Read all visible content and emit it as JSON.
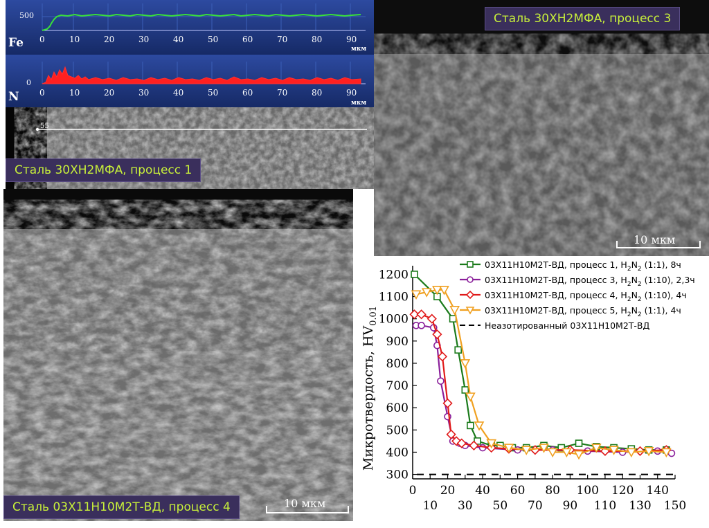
{
  "panels": {
    "p3": {
      "caption": "Сталь 30ХН2МФА, процесс 3",
      "scale": "10 мкм"
    },
    "p1": {
      "caption": "Сталь 30ХН2МФА, процесс 1",
      "marker": "55"
    },
    "p4": {
      "caption": "Сталь 03Х11Н10М2Т-ВД, процесс 4",
      "scale": "10 мкм"
    }
  },
  "profiles": {
    "unit": "мкм",
    "x_ticks": [
      "0",
      "10",
      "20",
      "30",
      "40",
      "50",
      "60",
      "70",
      "80",
      "90"
    ],
    "fe": {
      "label": "Fe",
      "ytick": "500",
      "color": "#39e03a"
    },
    "n": {
      "label": "N",
      "ytick": "0",
      "color": "#ff2020"
    }
  },
  "chart_data": {
    "type": "line",
    "ylabel": "Микротвердость, HV",
    "ylabel_sub": "0.01",
    "ylim": [
      280,
      1220
    ],
    "xlim": [
      0,
      150
    ],
    "yticks": [
      300,
      400,
      500,
      600,
      700,
      800,
      900,
      1000,
      1100,
      1200
    ],
    "xticks_top": [
      0,
      20,
      40,
      60,
      80,
      100,
      120,
      140
    ],
    "xticks_bottom": [
      10,
      30,
      50,
      70,
      90,
      110,
      130,
      150
    ],
    "baseline": {
      "name": "Неазотированный 03Х11Н10М2Т-ВД",
      "value": 300
    },
    "series": [
      {
        "name": "03Х11Н10М2Т-ВД, процесс 1, H",
        "name_sub": "2",
        "name_mid": "N",
        "name_sub2": "2",
        "name_tail": " (1:1), 8ч",
        "color": "#1a7a1a",
        "marker": "square",
        "x": [
          1,
          14,
          23,
          26,
          30,
          33,
          37,
          45,
          50,
          57,
          65,
          75,
          85,
          95,
          105,
          115,
          125,
          135,
          145
        ],
        "y": [
          1200,
          1100,
          1000,
          860,
          680,
          520,
          450,
          430,
          430,
          420,
          420,
          430,
          420,
          440,
          425,
          420,
          415,
          410,
          410
        ]
      },
      {
        "name": "03Х11Н10М2Т-ВД, процесс 3, H",
        "name_sub": "2",
        "name_mid": "N",
        "name_sub2": "2",
        "name_tail": " (1:10), 2,3ч",
        "color": "#8a1f9a",
        "marker": "circle",
        "x": [
          2,
          5,
          12,
          14,
          16,
          20,
          23,
          27,
          30,
          40,
          60,
          80,
          100,
          120,
          140,
          148
        ],
        "y": [
          970,
          970,
          960,
          880,
          720,
          560,
          450,
          440,
          430,
          420,
          410,
          410,
          405,
          400,
          405,
          395
        ]
      },
      {
        "name": "03Х11Н10М2Т-ВД, процесс 4, H",
        "name_sub": "2",
        "name_mid": "N",
        "name_sub2": "2",
        "name_tail": " (1:10), 4ч",
        "color": "#e01a1a",
        "marker": "diamond",
        "x": [
          1,
          5,
          11,
          14,
          17,
          20,
          22,
          25,
          28,
          35,
          45,
          55,
          70,
          90,
          110,
          130,
          145
        ],
        "y": [
          1020,
          1020,
          1000,
          930,
          830,
          620,
          480,
          450,
          440,
          430,
          420,
          415,
          410,
          410,
          405,
          405,
          410
        ]
      },
      {
        "name": "03Х11Н10М2Т-ВД, процесс 5, H",
        "name_sub": "2",
        "name_mid": "N",
        "name_sub2": "2",
        "name_tail": " (1:1), 4ч",
        "color": "#f0a020",
        "marker": "triangle-down",
        "x": [
          2,
          8,
          14,
          18,
          24,
          30,
          33,
          38,
          45,
          55,
          65,
          75,
          80,
          88,
          95,
          105,
          115,
          125,
          135,
          145
        ],
        "y": [
          1110,
          1120,
          1130,
          1130,
          1040,
          800,
          650,
          520,
          440,
          420,
          410,
          420,
          400,
          400,
          390,
          420,
          410,
          400,
          405,
          400
        ]
      }
    ]
  }
}
